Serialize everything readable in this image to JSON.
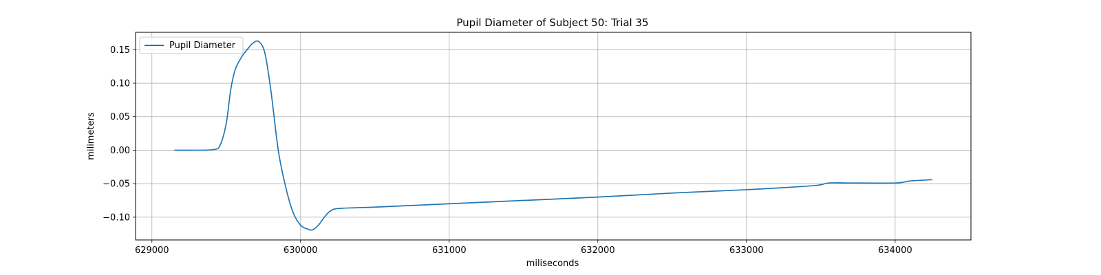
{
  "chart_data": {
    "type": "line",
    "title": "Pupil Diameter of Subject 50: Trial 35",
    "xlabel": "miliseconds",
    "ylabel": "milimeters",
    "xlim": [
      628890,
      634510
    ],
    "ylim": [
      -0.134,
      0.176
    ],
    "xticks": [
      629000,
      630000,
      631000,
      632000,
      633000,
      634000
    ],
    "xtick_labels": [
      "629000",
      "630000",
      "631000",
      "632000",
      "633000",
      "634000"
    ],
    "yticks": [
      0.15,
      0.1,
      0.05,
      0.0,
      -0.05,
      -0.1
    ],
    "ytick_labels": [
      "0.15",
      "0.10",
      "0.05",
      "0.00",
      "−0.05",
      "−0.10"
    ],
    "grid": true,
    "legend_placement": "upper-left",
    "series": [
      {
        "name": "Pupil Diameter",
        "color": "#1f77b4",
        "x": [
          629150,
          629300,
          629420,
          629460,
          629500,
          629530,
          629560,
          629600,
          629640,
          629680,
          629720,
          629760,
          629800,
          629850,
          629900,
          629950,
          630000,
          630050,
          630080,
          630120,
          630160,
          630200,
          630260,
          630500,
          631000,
          631500,
          632000,
          632500,
          633000,
          633450,
          633550,
          633700,
          634000,
          634100,
          634250
        ],
        "y": [
          0.0,
          0.0,
          0.001,
          0.008,
          0.04,
          0.09,
          0.12,
          0.138,
          0.15,
          0.16,
          0.162,
          0.145,
          0.09,
          0.0,
          -0.055,
          -0.093,
          -0.112,
          -0.118,
          -0.119,
          -0.112,
          -0.1,
          -0.091,
          -0.087,
          -0.085,
          -0.08,
          -0.075,
          -0.07,
          -0.064,
          -0.059,
          -0.053,
          -0.049,
          -0.049,
          -0.049,
          -0.046,
          -0.044
        ]
      }
    ]
  }
}
